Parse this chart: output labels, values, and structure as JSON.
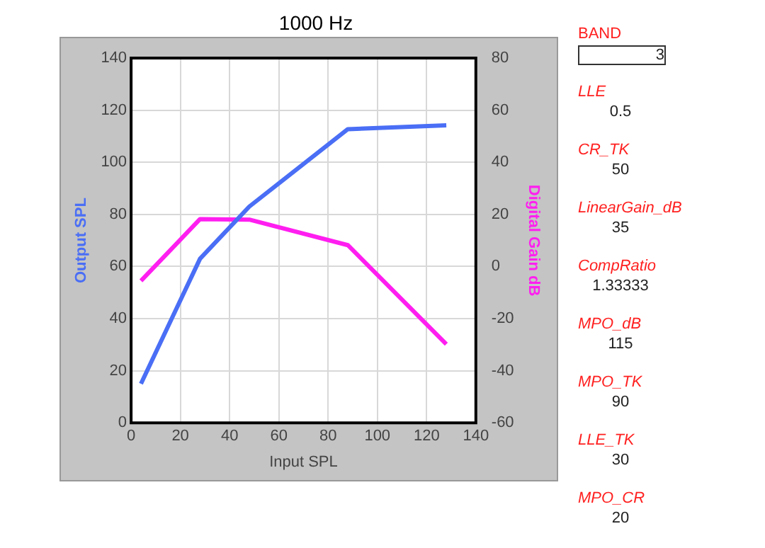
{
  "chart_data": {
    "type": "line",
    "title": "1000 Hz",
    "xlabel": "Input SPL",
    "ylabel": "Output SPL",
    "y2label": "Digital Gain dB",
    "x": [
      4,
      28,
      48,
      88,
      128
    ],
    "series": [
      {
        "color": "#4a6ef5",
        "values": [
          15,
          63,
          83,
          112.7,
          114.2
        ]
      },
      {
        "color": "#ff1ef0",
        "axis": "y2",
        "values": [
          -5.5,
          18.2,
          18,
          8.2,
          -29.8
        ]
      }
    ],
    "xlim": [
      0,
      140
    ],
    "xticks": [
      0,
      20,
      40,
      60,
      80,
      100,
      120,
      140
    ],
    "ylim": [
      0,
      140
    ],
    "yticks": [
      0,
      20,
      40,
      60,
      80,
      100,
      120,
      140
    ],
    "y2lim": [
      -60,
      80
    ],
    "y2ticks": [
      -60,
      -40,
      -20,
      0,
      20,
      40,
      60,
      80
    ],
    "grid": true,
    "legend": false,
    "marker": "none",
    "line_style": "solid",
    "annotations": [
      "BAND",
      "3",
      "LLE",
      "0.5",
      "CR_TK",
      "50",
      "LinearGain_dB",
      "35",
      "CompRatio",
      "1.33333",
      "MPO_dB",
      "115",
      "MPO_TK",
      "90",
      "LLE_TK",
      "30",
      "MPO_CR",
      "20"
    ]
  }
}
